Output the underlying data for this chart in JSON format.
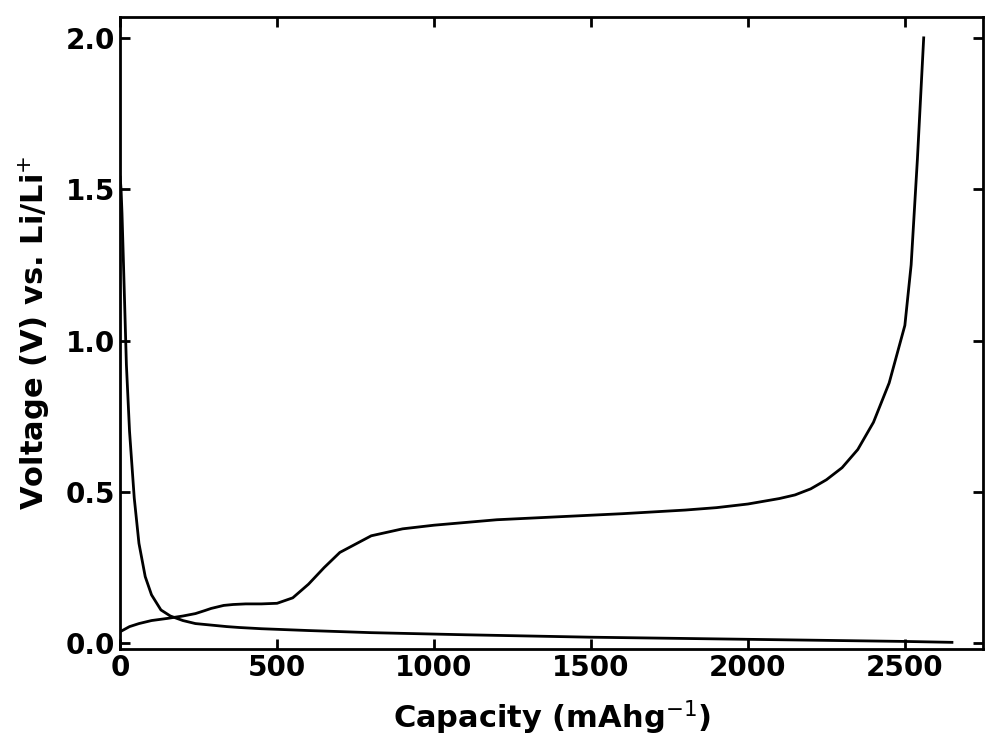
{
  "title": "",
  "xlabel": "Capacity (mAhg$^{-1}$)",
  "ylabel": "Voltage (V) vs. Li/Li$^{+}$",
  "xlim": [
    0,
    2750
  ],
  "ylim": [
    -0.02,
    2.07
  ],
  "xticks": [
    0,
    500,
    1000,
    1500,
    2000,
    2500
  ],
  "yticks": [
    0.0,
    0.5,
    1.0,
    1.5,
    2.0
  ],
  "line_color": "#000000",
  "line_width": 2.0,
  "background_color": "#ffffff",
  "discharge_x": [
    0,
    3,
    6,
    10,
    15,
    20,
    30,
    45,
    60,
    80,
    100,
    130,
    160,
    200,
    240,
    270,
    290,
    310,
    340,
    380,
    450,
    600,
    800,
    1100,
    1500,
    2000,
    2500,
    2650
  ],
  "discharge_y": [
    1.54,
    1.5,
    1.42,
    1.28,
    1.1,
    0.92,
    0.7,
    0.48,
    0.33,
    0.22,
    0.16,
    0.11,
    0.09,
    0.075,
    0.065,
    0.062,
    0.06,
    0.058,
    0.055,
    0.052,
    0.048,
    0.042,
    0.035,
    0.028,
    0.02,
    0.013,
    0.006,
    0.003
  ],
  "charge_x": [
    0,
    30,
    60,
    100,
    150,
    200,
    240,
    270,
    290,
    310,
    330,
    360,
    400,
    450,
    500,
    550,
    600,
    650,
    700,
    800,
    900,
    1000,
    1200,
    1400,
    1600,
    1800,
    1900,
    2000,
    2100,
    2150,
    2200,
    2250,
    2300,
    2350,
    2400,
    2450,
    2500,
    2520,
    2540,
    2560
  ],
  "charge_y": [
    0.038,
    0.055,
    0.065,
    0.075,
    0.082,
    0.09,
    0.098,
    0.108,
    0.115,
    0.12,
    0.125,
    0.128,
    0.13,
    0.13,
    0.132,
    0.15,
    0.195,
    0.25,
    0.3,
    0.355,
    0.378,
    0.39,
    0.408,
    0.418,
    0.428,
    0.44,
    0.448,
    0.46,
    0.478,
    0.49,
    0.51,
    0.54,
    0.58,
    0.64,
    0.73,
    0.86,
    1.05,
    1.25,
    1.6,
    2.0
  ]
}
